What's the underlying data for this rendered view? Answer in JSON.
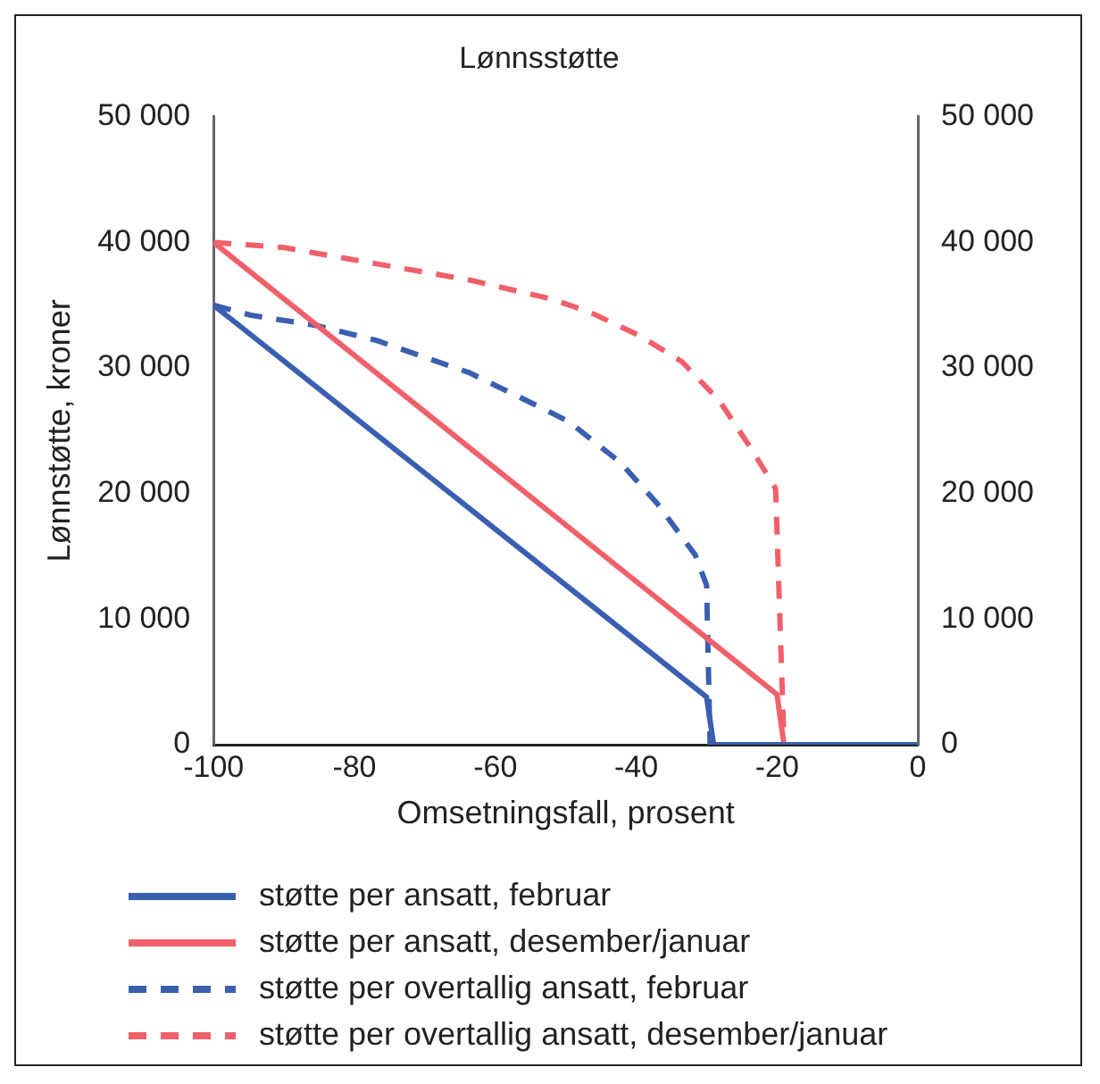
{
  "chart_data": {
    "type": "line",
    "title": "Lønnsstøtte",
    "xlabel": "Omsetningsfall, prosent",
    "ylabel": "Lønnstøtte, kroner",
    "xlim": [
      -100,
      0
    ],
    "xticks": [
      -100,
      -80,
      -60,
      -40,
      -20,
      0
    ],
    "ylim": [
      0,
      50000
    ],
    "yticks": [
      {
        "value": 0,
        "label": "0"
      },
      {
        "value": 10000,
        "label": "10 000"
      },
      {
        "value": 20000,
        "label": "20 000"
      },
      {
        "value": 30000,
        "label": "30 000"
      },
      {
        "value": 40000,
        "label": "40 000"
      },
      {
        "value": 50000,
        "label": "50 000"
      }
    ],
    "y2lim": [
      0,
      50000
    ],
    "y2ticks": [
      {
        "value": 0,
        "label": "0"
      },
      {
        "value": 10000,
        "label": "10 000"
      },
      {
        "value": 20000,
        "label": "20 000"
      },
      {
        "value": 30000,
        "label": "30 000"
      },
      {
        "value": 40000,
        "label": "40 000"
      },
      {
        "value": 50000,
        "label": "50 000"
      }
    ],
    "grid": false,
    "legend": "bottom",
    "marker": "none",
    "series": [
      {
        "name": "støtte per ansatt, februar",
        "color": "#3a5fb0",
        "line_style": "solid",
        "x": [
          -100,
          -30,
          -29,
          0
        ],
        "values": [
          35000,
          3800,
          0,
          0
        ]
      },
      {
        "name": "støtte per ansatt, desember/januar",
        "color": "#f0606a",
        "line_style": "solid",
        "x": [
          -100,
          -20,
          -19,
          0
        ],
        "values": [
          40000,
          4000,
          0,
          0
        ]
      },
      {
        "name": "støtte per overtallig ansatt, februar",
        "color": "#3a5fb0",
        "line_style": "dashed",
        "x": [
          -100,
          -94.7,
          -85.6,
          -76.9,
          -63.6,
          -53.7,
          -49.5,
          -42.3,
          -37,
          -31.6,
          -30,
          -29.5,
          0
        ],
        "values": [
          35000,
          34200,
          33400,
          32200,
          29600,
          26900,
          25700,
          22500,
          19200,
          15100,
          12700,
          0,
          0
        ]
      },
      {
        "name": "støtte per overtallig ansatt, desember/januar",
        "color": "#f0606a",
        "line_style": "dashed",
        "x": [
          -100,
          -90.2,
          -76.9,
          -63.6,
          -52.1,
          -46.8,
          -39.6,
          -33.5,
          -28.2,
          -23.7,
          -20.2,
          -19,
          0
        ],
        "values": [
          40000,
          39600,
          38300,
          37000,
          35500,
          34500,
          32600,
          30500,
          27400,
          23600,
          20400,
          0,
          0
        ]
      }
    ]
  }
}
